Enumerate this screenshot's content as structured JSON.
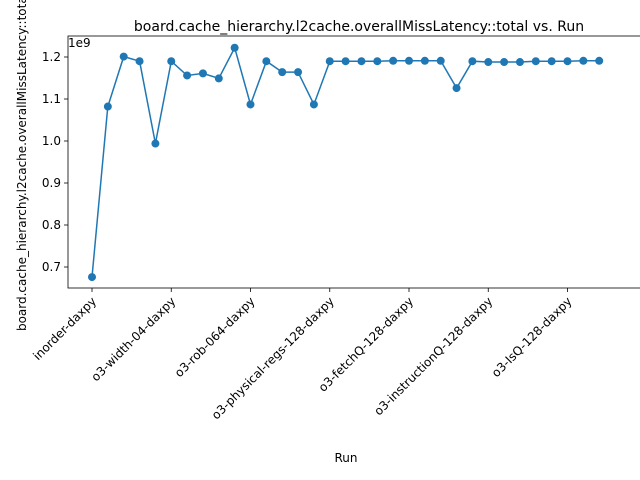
{
  "chart_data": {
    "type": "line",
    "title": "board.cache_hierarchy.l2cache.overallMissLatency::total vs. Run",
    "xlabel": "Run",
    "ylabel": "board.cache_hierarchy.l2cache.overallMissLatency::total",
    "y_offset_label": "1e9",
    "ylim": [
      0.65,
      1.25
    ],
    "yticks": [
      "0.7",
      "0.8",
      "0.9",
      "1.0",
      "1.1",
      "1.2"
    ],
    "ytick_values": [
      0.7,
      0.8,
      0.9,
      1.0,
      1.1,
      1.2
    ],
    "xtick_labels": [
      {
        "index": 0,
        "label": "inorder-daxpy"
      },
      {
        "index": 5,
        "label": "o3-width-04-daxpy"
      },
      {
        "index": 10,
        "label": "o3-rob-064-daxpy"
      },
      {
        "index": 15,
        "label": "o3-physical-regs-128-daxpy"
      },
      {
        "index": 20,
        "label": "o3-fetchQ-128-daxpy"
      },
      {
        "index": 25,
        "label": "o3-instructionQ-128-daxpy"
      },
      {
        "index": 30,
        "label": "o3-IsQ-128-daxpy"
      }
    ],
    "series": [
      {
        "color": "#1f77b4",
        "values": [
          0.676,
          1.082,
          1.201,
          1.19,
          0.994,
          1.19,
          1.156,
          1.161,
          1.149,
          1.222,
          1.087,
          1.19,
          1.164,
          1.164,
          1.087,
          1.19,
          1.19,
          1.19,
          1.19,
          1.191,
          1.191,
          1.191,
          1.191,
          1.126,
          1.19,
          1.188,
          1.188,
          1.188,
          1.19,
          1.19,
          1.19,
          1.191,
          1.191
        ]
      }
    ],
    "grid": false,
    "legend": "none"
  }
}
